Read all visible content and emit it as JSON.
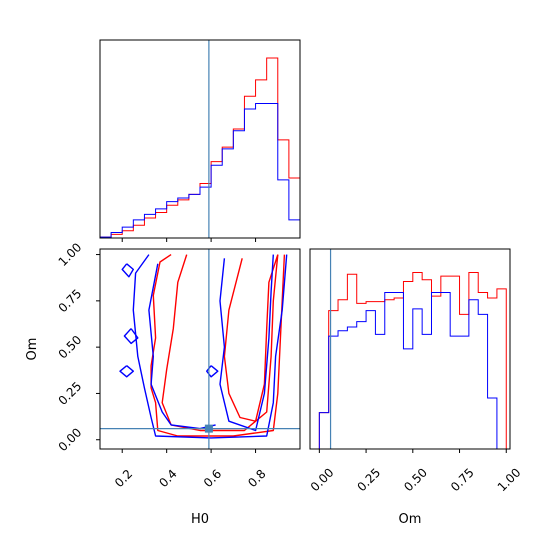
{
  "chart_data": {
    "type": "corner",
    "parameters": [
      "H0",
      "Om"
    ],
    "truth": {
      "H0": 0.59,
      "Om": 0.06
    },
    "colors": {
      "red": "#ff0000",
      "blue": "#0000ff",
      "truth": "#4682b4"
    },
    "hist_H0": {
      "x_range": [
        0.1,
        1.0
      ],
      "bin_edges": [
        0.1,
        0.15,
        0.2,
        0.25,
        0.3,
        0.35,
        0.4,
        0.45,
        0.5,
        0.55,
        0.6,
        0.65,
        0.7,
        0.75,
        0.8,
        0.85,
        0.9,
        0.95,
        1.0
      ],
      "series": [
        {
          "color": "red",
          "values": [
            0.005,
            0.02,
            0.04,
            0.07,
            0.11,
            0.14,
            0.18,
            0.21,
            0.24,
            0.3,
            0.42,
            0.5,
            0.6,
            0.78,
            0.87,
            0.99,
            0.54,
            0.33
          ]
        },
        {
          "color": "blue",
          "values": [
            0.005,
            0.03,
            0.06,
            0.1,
            0.13,
            0.16,
            0.2,
            0.22,
            0.24,
            0.28,
            0.4,
            0.49,
            0.59,
            0.71,
            0.74,
            0.74,
            0.32,
            0.1
          ]
        }
      ]
    },
    "hist_Om": {
      "x_range": [
        -0.05,
        1.02
      ],
      "bin_edges": [
        -0.05,
        0.0,
        0.05,
        0.1,
        0.15,
        0.2,
        0.25,
        0.3,
        0.35,
        0.4,
        0.45,
        0.5,
        0.55,
        0.6,
        0.65,
        0.7,
        0.75,
        0.8,
        0.85,
        0.9,
        0.95,
        1.0
      ],
      "series": [
        {
          "color": "red",
          "values": [
            0.0,
            0.2,
            0.76,
            0.82,
            0.96,
            0.8,
            0.81,
            0.81,
            0.82,
            0.83,
            0.92,
            0.97,
            0.93,
            0.84,
            0.95,
            0.95,
            0.74,
            0.97,
            0.86,
            0.83,
            0.88
          ]
        },
        {
          "color": "blue",
          "values": [
            0.0,
            0.2,
            0.62,
            0.65,
            0.67,
            0.7,
            0.76,
            0.63,
            0.86,
            0.86,
            0.55,
            0.77,
            0.63,
            0.86,
            0.86,
            0.62,
            0.62,
            0.82,
            0.74,
            0.28,
            0.0
          ]
        }
      ],
      "xticks": [
        "0.00",
        "0.25",
        "0.50",
        "0.75",
        "1.00"
      ],
      "xlabel": "Om"
    },
    "scatter": {
      "x_range": [
        0.1,
        1.0
      ],
      "y_range": [
        -0.05,
        1.03
      ],
      "xticks": [
        "0.2",
        "0.4",
        "0.6",
        "0.8"
      ],
      "yticks": [
        "0.00",
        "0.25",
        "0.50",
        "0.75",
        "1.00"
      ],
      "xlabel": "H0",
      "ylabel": "Om",
      "contours": [
        {
          "color": "red",
          "points": [
            [
              0.42,
              1.0
            ],
            [
              0.37,
              0.96
            ],
            [
              0.34,
              0.78
            ],
            [
              0.35,
              0.55
            ],
            [
              0.33,
              0.4
            ],
            [
              0.33,
              0.28
            ],
            [
              0.35,
              0.2
            ],
            [
              0.36,
              0.05
            ],
            [
              0.45,
              0.02
            ],
            [
              0.7,
              0.02
            ],
            [
              0.88,
              0.05
            ],
            [
              0.9,
              0.25
            ],
            [
              0.91,
              0.5
            ],
            [
              0.92,
              0.75
            ],
            [
              0.93,
              1.0
            ]
          ]
        },
        {
          "color": "red",
          "points": [
            [
              0.49,
              1.0
            ],
            [
              0.45,
              0.85
            ],
            [
              0.43,
              0.6
            ],
            [
              0.4,
              0.38
            ],
            [
              0.38,
              0.2
            ],
            [
              0.42,
              0.08
            ],
            [
              0.55,
              0.05
            ],
            [
              0.75,
              0.05
            ],
            [
              0.85,
              0.15
            ],
            [
              0.87,
              0.45
            ],
            [
              0.88,
              0.75
            ],
            [
              0.9,
              1.0
            ]
          ]
        },
        {
          "color": "red",
          "points": [
            [
              0.74,
              0.98
            ],
            [
              0.68,
              0.7
            ],
            [
              0.66,
              0.45
            ],
            [
              0.68,
              0.25
            ],
            [
              0.73,
              0.12
            ],
            [
              0.8,
              0.1
            ],
            [
              0.84,
              0.3
            ],
            [
              0.85,
              0.6
            ],
            [
              0.86,
              0.85
            ],
            [
              0.9,
              1.0
            ]
          ]
        },
        {
          "color": "blue",
          "points": [
            [
              0.32,
              1.0
            ],
            [
              0.26,
              0.9
            ],
            [
              0.25,
              0.7
            ],
            [
              0.27,
              0.45
            ],
            [
              0.3,
              0.28
            ],
            [
              0.33,
              0.12
            ],
            [
              0.35,
              0.02
            ],
            [
              0.6,
              0.01
            ],
            [
              0.85,
              0.02
            ],
            [
              0.88,
              0.2
            ],
            [
              0.89,
              0.45
            ],
            [
              0.92,
              0.7
            ],
            [
              0.94,
              1.0
            ]
          ]
        },
        {
          "color": "blue",
          "points": [
            [
              0.36,
              0.95
            ],
            [
              0.32,
              0.7
            ],
            [
              0.34,
              0.45
            ],
            [
              0.33,
              0.3
            ],
            [
              0.38,
              0.15
            ],
            [
              0.42,
              0.08
            ],
            [
              0.55,
              0.06
            ],
            [
              0.62,
              0.08
            ]
          ]
        },
        {
          "color": "blue",
          "points": [
            [
              0.66,
              0.98
            ],
            [
              0.64,
              0.75
            ],
            [
              0.66,
              0.5
            ],
            [
              0.64,
              0.3
            ],
            [
              0.68,
              0.1
            ],
            [
              0.8,
              0.05
            ],
            [
              0.84,
              0.25
            ],
            [
              0.86,
              0.55
            ],
            [
              0.87,
              0.8
            ],
            [
              0.88,
              1.0
            ]
          ]
        },
        {
          "color": "blue",
          "points": [
            [
              0.22,
              0.95
            ],
            [
              0.25,
              0.92
            ],
            [
              0.23,
              0.88
            ],
            [
              0.2,
              0.92
            ],
            [
              0.22,
              0.95
            ]
          ]
        },
        {
          "color": "blue",
          "points": [
            [
              0.24,
              0.6
            ],
            [
              0.27,
              0.55
            ],
            [
              0.24,
              0.52
            ],
            [
              0.21,
              0.56
            ],
            [
              0.24,
              0.6
            ]
          ]
        },
        {
          "color": "blue",
          "points": [
            [
              0.22,
              0.4
            ],
            [
              0.25,
              0.37
            ],
            [
              0.22,
              0.34
            ],
            [
              0.19,
              0.37
            ],
            [
              0.22,
              0.4
            ]
          ]
        },
        {
          "color": "blue",
          "points": [
            [
              0.6,
              0.4
            ],
            [
              0.63,
              0.37
            ],
            [
              0.6,
              0.34
            ],
            [
              0.58,
              0.37
            ],
            [
              0.6,
              0.4
            ]
          ]
        }
      ]
    }
  }
}
